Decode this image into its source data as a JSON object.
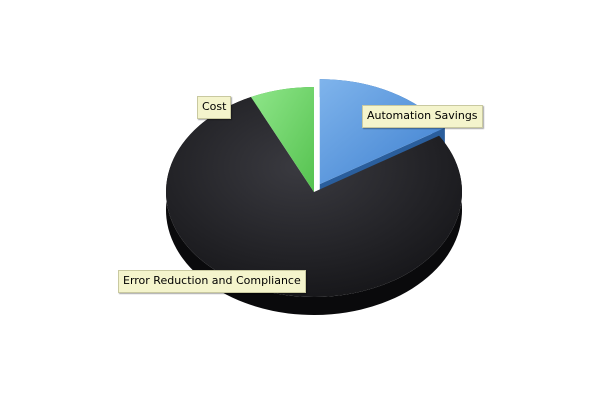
{
  "chart_data": {
    "type": "pie",
    "style": "3d-exploded",
    "categories": [
      "Automation Savings",
      "Error Reduction and Compliance",
      "Cost"
    ],
    "values": [
      16,
      77,
      7
    ],
    "colors": [
      "#4a8fd8",
      "#202024",
      "#6fd46a"
    ],
    "side_colors": [
      "#2a5e9c",
      "#0a0a0c",
      "#3e9a3c"
    ],
    "exploded": [
      "Automation Savings"
    ],
    "start_angle_deg": 0,
    "title": "",
    "legend": "none"
  }
}
